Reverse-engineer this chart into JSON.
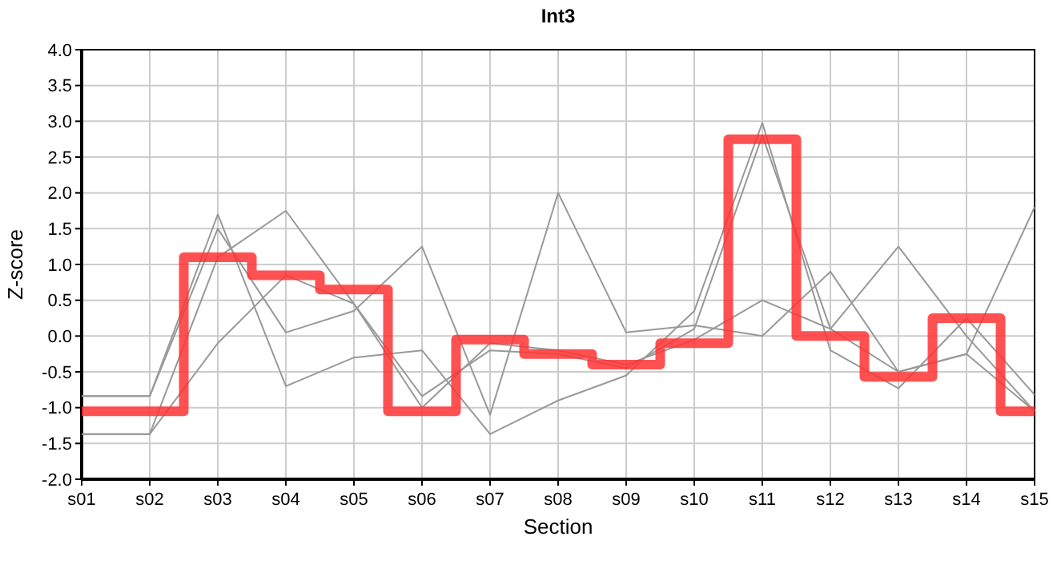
{
  "chart_data": {
    "type": "line",
    "title": "Int3",
    "xlabel": "Section",
    "ylabel": "Z-score",
    "categories": [
      "s01",
      "s02",
      "s03",
      "s04",
      "s05",
      "s06",
      "s07",
      "s08",
      "s09",
      "s10",
      "s11",
      "s12",
      "s13",
      "s14",
      "s15"
    ],
    "series": [
      {
        "color": "#999999",
        "values": [
          -0.84,
          -0.84,
          1.5,
          0.05,
          0.35,
          1.25,
          -1.1,
          2.0,
          0.05,
          0.15,
          0.0,
          0.9,
          -0.5,
          -0.25,
          1.8
        ]
      },
      {
        "color": "#999999",
        "values": [
          -1.37,
          -1.37,
          -0.1,
          0.85,
          0.45,
          -1.0,
          -0.1,
          -0.2,
          -0.4,
          -0.05,
          0.5,
          0.1,
          1.25,
          0.0,
          -1.05
        ]
      },
      {
        "color": "#999999",
        "values": [
          -0.84,
          -0.84,
          1.7,
          -0.7,
          -0.3,
          -0.2,
          -1.37,
          -0.9,
          -0.55,
          0.35,
          2.98,
          -0.2,
          -0.73,
          0.25,
          -0.82
        ]
      },
      {
        "color": "#999999",
        "values": [
          -1.37,
          -1.37,
          1.1,
          1.75,
          0.45,
          -0.84,
          -0.2,
          -0.25,
          -0.45,
          0.1,
          2.8,
          0.1,
          -0.5,
          -0.25,
          -1.05
        ]
      },
      {
        "type": "step",
        "color": "#ff3333",
        "values": [
          -1.05,
          -1.05,
          1.1,
          0.85,
          0.65,
          -1.05,
          -0.05,
          -0.25,
          -0.4,
          -0.1,
          2.75,
          0.0,
          -0.57,
          0.25,
          -1.05
        ]
      }
    ],
    "ylim": [
      -2,
      4
    ],
    "yticks": [
      {
        "value": -2,
        "label": "-2.0"
      },
      {
        "value": -1.5,
        "label": "-1.5"
      },
      {
        "value": -1,
        "label": "-1.0"
      },
      {
        "value": -0.5,
        "label": "-0.5"
      },
      {
        "value": 0,
        "label": "0.0"
      },
      {
        "value": 0.5,
        "label": "0.5"
      },
      {
        "value": 1,
        "label": "1.0"
      },
      {
        "value": 1.5,
        "label": "1.5"
      },
      {
        "value": 2,
        "label": "2.0"
      },
      {
        "value": 2.5,
        "label": "2.5"
      },
      {
        "value": 3,
        "label": "3.0"
      },
      {
        "value": 3.5,
        "label": "3.5"
      },
      {
        "value": 4,
        "label": "4.0"
      }
    ],
    "grid": true,
    "marker": "none"
  }
}
